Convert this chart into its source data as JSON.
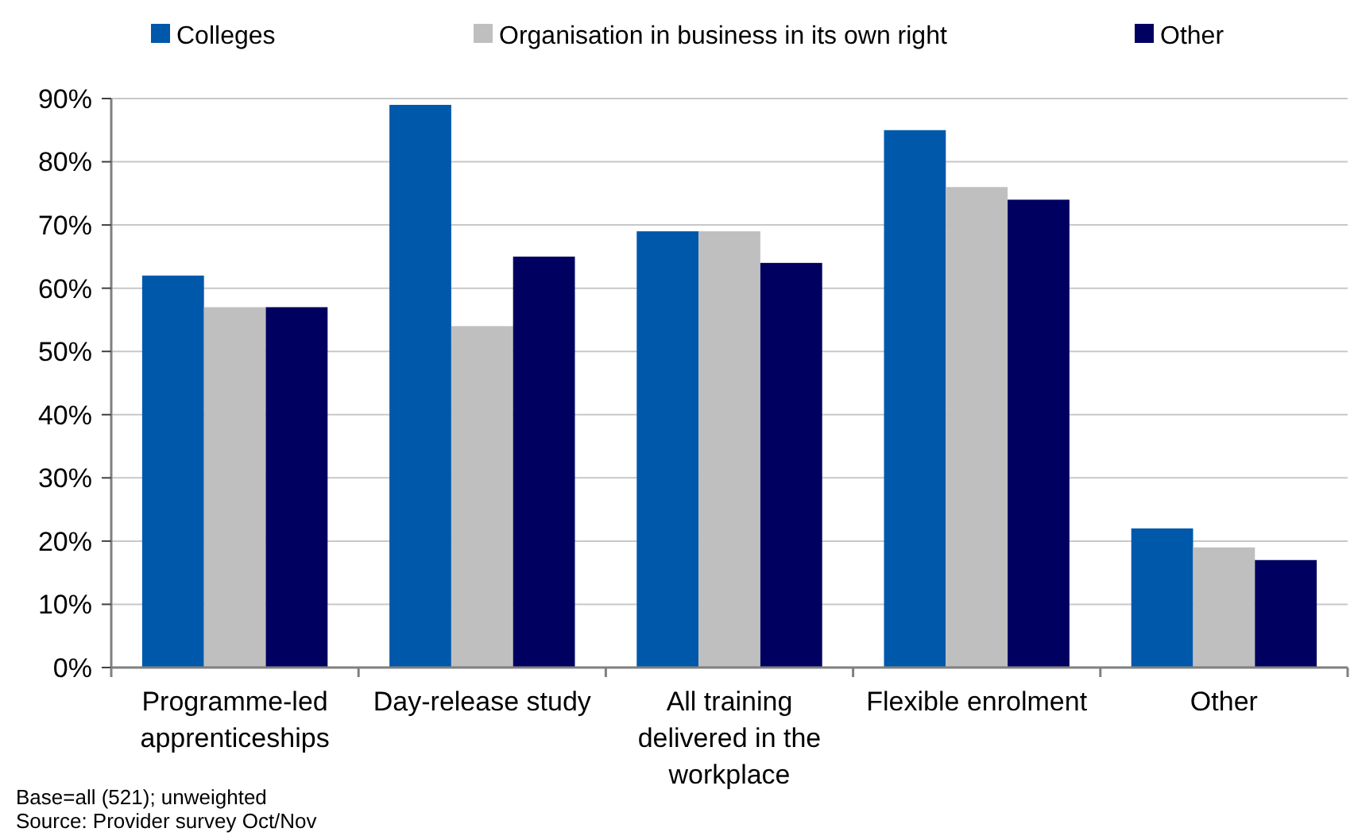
{
  "chart_data": {
    "type": "bar",
    "categories": [
      "Programme-led apprenticeships",
      "Day-release study",
      "All training delivered in the workplace",
      "Flexible enrolment",
      "Other"
    ],
    "series": [
      {
        "name": "Colleges",
        "color": "#0058ab",
        "values": [
          62,
          89,
          69,
          85,
          22
        ]
      },
      {
        "name": "Organisation in business in its own right",
        "color": "#bfbfbf",
        "values": [
          57,
          54,
          69,
          76,
          19
        ]
      },
      {
        "name": "Other",
        "color": "#000060",
        "values": [
          57,
          65,
          64,
          74,
          17
        ]
      }
    ],
    "ylim": [
      0,
      90
    ],
    "yticks": [
      {
        "value": 0,
        "label": "0%"
      },
      {
        "value": 10,
        "label": "10%"
      },
      {
        "value": 20,
        "label": "20%"
      },
      {
        "value": 30,
        "label": "30%"
      },
      {
        "value": 40,
        "label": "40%"
      },
      {
        "value": 50,
        "label": "50%"
      },
      {
        "value": 60,
        "label": "60%"
      },
      {
        "value": 70,
        "label": "70%"
      },
      {
        "value": 80,
        "label": "80%"
      },
      {
        "value": 90,
        "label": "90%"
      }
    ],
    "grid": "y",
    "legend": "top",
    "annotations": [
      "Base=all (521); unweighted",
      "Source: Provider survey Oct/Nov"
    ]
  }
}
